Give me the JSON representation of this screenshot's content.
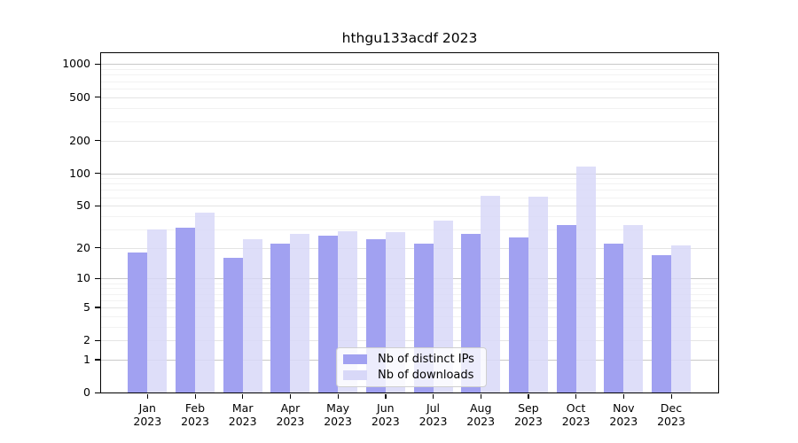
{
  "title": "hthgu133acdf 2023",
  "chart_data": {
    "type": "bar",
    "title": "hthgu133acdf 2023",
    "categories": [
      "Jan 2023",
      "Feb 2023",
      "Mar 2023",
      "Apr 2023",
      "May 2023",
      "Jun 2023",
      "Jul 2023",
      "Aug 2023",
      "Sep 2023",
      "Oct 2023",
      "Nov 2023",
      "Dec 2023"
    ],
    "series": [
      {
        "name": "Nb of distinct IPs",
        "color": "#a1a1f1",
        "values": [
          18,
          31,
          16,
          22,
          26,
          24,
          22,
          27,
          25,
          33,
          22,
          17
        ]
      },
      {
        "name": "Nb of downloads",
        "color": "#d8d8f8",
        "values": [
          30,
          43,
          24,
          27,
          29,
          28,
          36,
          62,
          61,
          115,
          33,
          21
        ]
      }
    ],
    "xlabel": "",
    "ylabel": "",
    "y_scale": "log10(value+1)",
    "y_ticks": [
      0,
      1,
      2,
      5,
      10,
      20,
      50,
      100,
      200,
      500,
      1000
    ],
    "ylim": [
      0,
      1280
    ],
    "grid": "horizontal",
    "legend_position": "lower-center"
  },
  "colors": {
    "background": "#ffffff",
    "axis": "#000000",
    "grid_major": "#c9c9c9",
    "grid_mid": "#e4e4e4",
    "grid_minor": "#f2f2f2",
    "legend_border": "#cfcfcf"
  }
}
